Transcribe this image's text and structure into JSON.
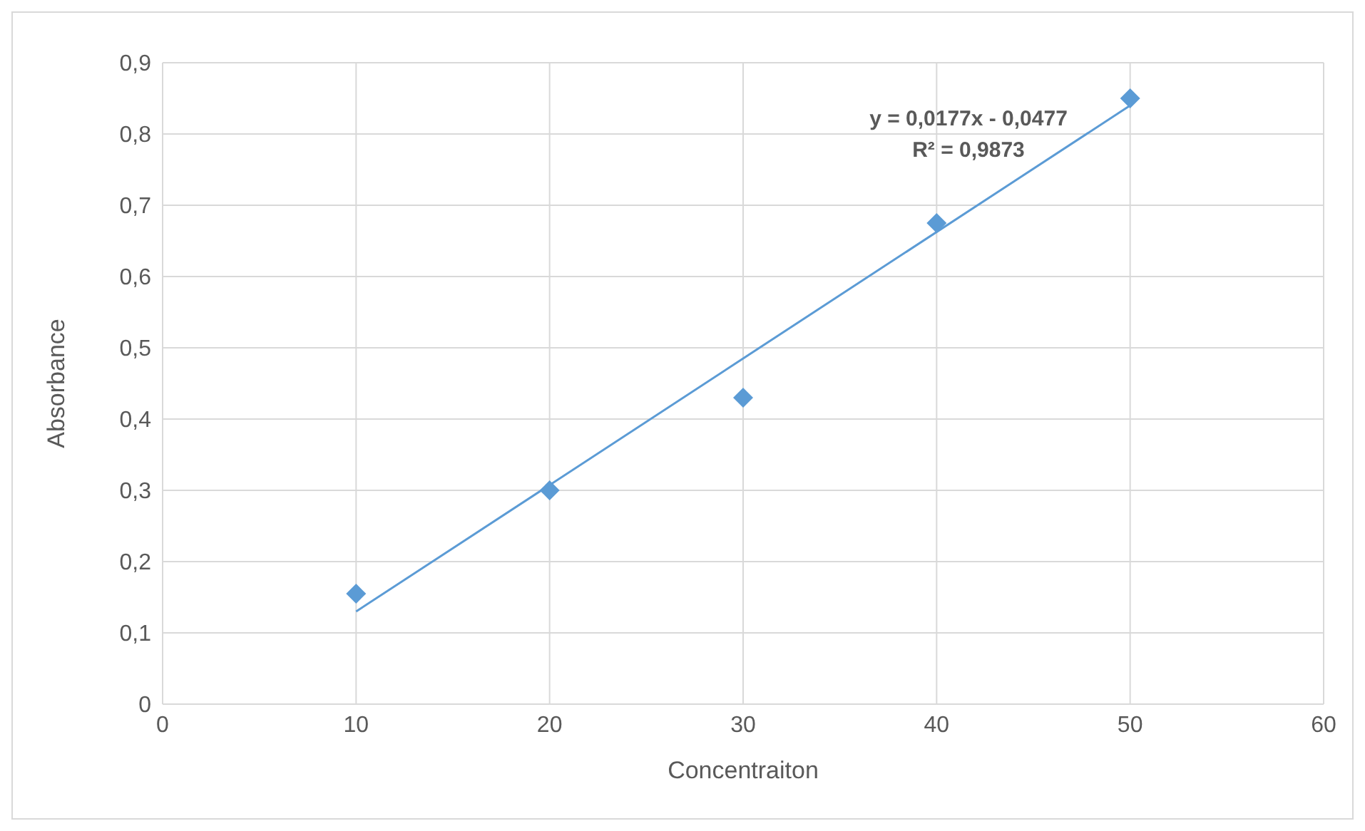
{
  "chart_data": {
    "type": "scatter",
    "xlabel": "Concentraiton",
    "ylabel": "Absorbance",
    "x": [
      10,
      20,
      30,
      40,
      50
    ],
    "series": [
      {
        "color": "#5b9bd5",
        "values": [
          0.155,
          0.3,
          0.43,
          0.675,
          0.85
        ],
        "marker": "diamond"
      },
      {
        "type": "line",
        "color": "#5b9bd5",
        "x": [
          10,
          50
        ],
        "values": [
          0.13,
          0.84
        ],
        "marker": "none"
      }
    ],
    "xlim": [
      0,
      60
    ],
    "xticks": [
      0,
      10,
      20,
      30,
      40,
      50,
      60
    ],
    "ylim": [
      0,
      0.9
    ],
    "yticks": [
      0,
      {
        "value": 0.1,
        "label": "0,1"
      },
      {
        "value": 0.2,
        "label": "0,2"
      },
      {
        "value": 0.3,
        "label": "0,3"
      },
      {
        "value": 0.4,
        "label": "0,4"
      },
      {
        "value": 0.5,
        "label": "0,5"
      },
      {
        "value": 0.6,
        "label": "0,6"
      },
      {
        "value": 0.7,
        "label": "0,7"
      },
      {
        "value": 0.8,
        "label": "0,8"
      },
      {
        "value": 0.9,
        "label": "0,9"
      }
    ],
    "grid": true,
    "annotations": [
      "y = 0,0177x - 0,0477",
      "R² = 0,9873"
    ]
  }
}
